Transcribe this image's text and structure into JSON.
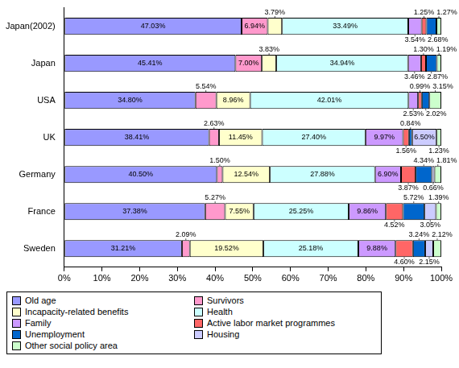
{
  "chart_data": {
    "type": "bar",
    "orientation": "horizontal",
    "stacked": true,
    "data_labels": true,
    "grid": false,
    "categories": [
      "Japan(2002)",
      "Japan",
      "USA",
      "UK",
      "Germany",
      "France",
      "Sweden"
    ],
    "xlim": [
      0,
      100
    ],
    "xticks": [
      {
        "value": 0,
        "label": "0%"
      },
      {
        "value": 10,
        "label": "10%"
      },
      {
        "value": 20,
        "label": "20%"
      },
      {
        "value": 30,
        "label": "30%"
      },
      {
        "value": 40,
        "label": "40%"
      },
      {
        "value": 50,
        "label": "50%"
      },
      {
        "value": 60,
        "label": "60%"
      },
      {
        "value": 70,
        "label": "70%"
      },
      {
        "value": 80,
        "label": "80%"
      },
      {
        "value": 90,
        "label": "90%"
      },
      {
        "value": 100,
        "label": "100%"
      }
    ],
    "series": [
      {
        "name": "Old age",
        "color": "#9999ff",
        "values": [
          47.03,
          45.41,
          34.8,
          38.41,
          40.5,
          37.38,
          31.21
        ],
        "value_labels": [
          "47.03%",
          "45.41%",
          "34.80%",
          "38.41%",
          "40.50%",
          "37.38%",
          "31.21%"
        ]
      },
      {
        "name": "Survivors",
        "color": "#ff99cc",
        "values": [
          6.94,
          7.0,
          5.54,
          2.63,
          1.5,
          5.27,
          2.09
        ],
        "value_labels": [
          "6.94%",
          "7.00%",
          "5.54%",
          "2.63%",
          "1.50%",
          "5.27%",
          "2.09%"
        ]
      },
      {
        "name": "Incapacity-related benefits",
        "color": "#ffffcc",
        "values": [
          3.79,
          3.83,
          8.96,
          11.45,
          12.54,
          7.55,
          19.52
        ],
        "value_labels": [
          "3.79%",
          "3.83%",
          "8.96%",
          "11.45%",
          "12.54%",
          "7.55%",
          "19.52%"
        ]
      },
      {
        "name": "Health",
        "color": "#ccffff",
        "values": [
          33.49,
          34.94,
          42.01,
          27.4,
          27.88,
          25.25,
          25.18
        ],
        "value_labels": [
          "33.49%",
          "34.94%",
          "42.01%",
          "27.40%",
          "27.88%",
          "25.25%",
          "25.18%"
        ]
      },
      {
        "name": "Family",
        "color": "#cc99ff",
        "values": [
          3.54,
          3.46,
          2.53,
          9.97,
          6.9,
          9.86,
          9.88
        ],
        "value_labels": [
          "3.54%",
          "3.46%",
          "2.53%",
          "9.97%",
          "6.90%",
          "9.86%",
          "9.88%"
        ]
      },
      {
        "name": "Active labor market programmes",
        "color": "#ff6666",
        "values": [
          1.25,
          1.3,
          0.99,
          1.56,
          3.87,
          4.52,
          4.6
        ],
        "value_labels": [
          "1.25%",
          "1.30%",
          "0.99%",
          "1.56%",
          "3.87%",
          "4.52%",
          "4.60%"
        ]
      },
      {
        "name": "Unemployment",
        "color": "#0066cc",
        "values": [
          2.68,
          2.87,
          2.02,
          0.84,
          4.34,
          5.72,
          3.24
        ],
        "value_labels": [
          "2.68%",
          "2.87%",
          "2.02%",
          "0.84%",
          "4.34%",
          "5.72%",
          "3.24%"
        ]
      },
      {
        "name": "Housing",
        "color": "#ccccff",
        "values": [
          0,
          0,
          0,
          6.5,
          0.66,
          3.05,
          2.15
        ],
        "value_labels": [
          null,
          null,
          null,
          "6.50%",
          "0.66%",
          "3.05%",
          "2.15%"
        ]
      },
      {
        "name": "Other social policy area",
        "color": "#ccffcc",
        "values": [
          1.27,
          1.19,
          3.15,
          1.23,
          1.81,
          1.39,
          2.12
        ],
        "value_labels": [
          "1.27%",
          "1.19%",
          "3.15%",
          "1.23%",
          "1.81%",
          "1.39%",
          "2.12%"
        ]
      }
    ]
  }
}
